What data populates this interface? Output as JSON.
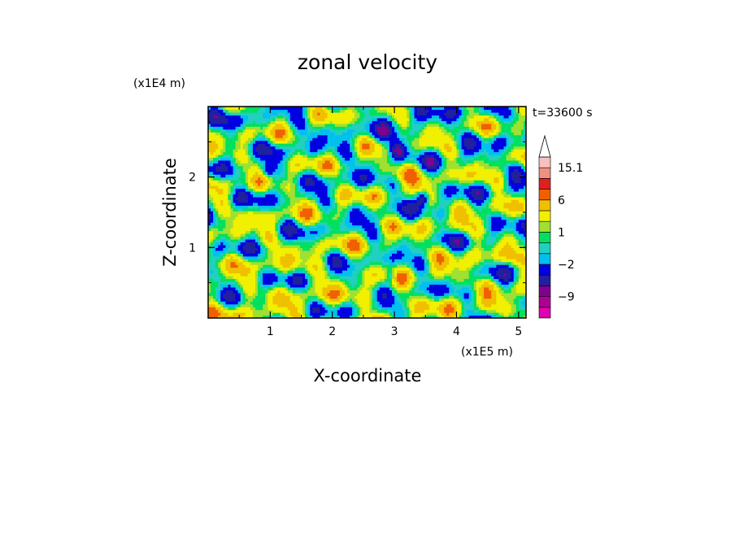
{
  "chart_data": {
    "type": "heatmap",
    "title": "zonal velocity",
    "xlabel": "X-coordinate",
    "ylabel": "Z-coordinate",
    "x_unit": "(x1E5 m)",
    "y_unit": "(x1E4 m)",
    "time_label": "t=33600 s",
    "xlim": [
      0,
      5.12
    ],
    "ylim": [
      0,
      3.0
    ],
    "x_ticks": [
      1,
      2,
      3,
      4,
      5
    ],
    "y_ticks": [
      1,
      2
    ],
    "colorbar": {
      "levels": [
        -15,
        -12,
        -9,
        -6,
        -4,
        -2,
        -1,
        0,
        1,
        2,
        4,
        6,
        9,
        12,
        15.1
      ],
      "colors": [
        "#e000b0",
        "#b00090",
        "#800090",
        "#2020a0",
        "#0000e0",
        "#00c0f0",
        "#20d0c0",
        "#00e060",
        "#a0e030",
        "#f0f000",
        "#f0c000",
        "#f06000",
        "#e02020",
        "#f09080",
        "#f8c0c0"
      ],
      "labels": [
        {
          "value": -9,
          "text": "−9"
        },
        {
          "value": -2,
          "text": "−2"
        },
        {
          "value": 1,
          "text": "1"
        },
        {
          "value": 6,
          "text": "6"
        },
        {
          "value": 15.1,
          "text": "15.1"
        }
      ]
    }
  }
}
